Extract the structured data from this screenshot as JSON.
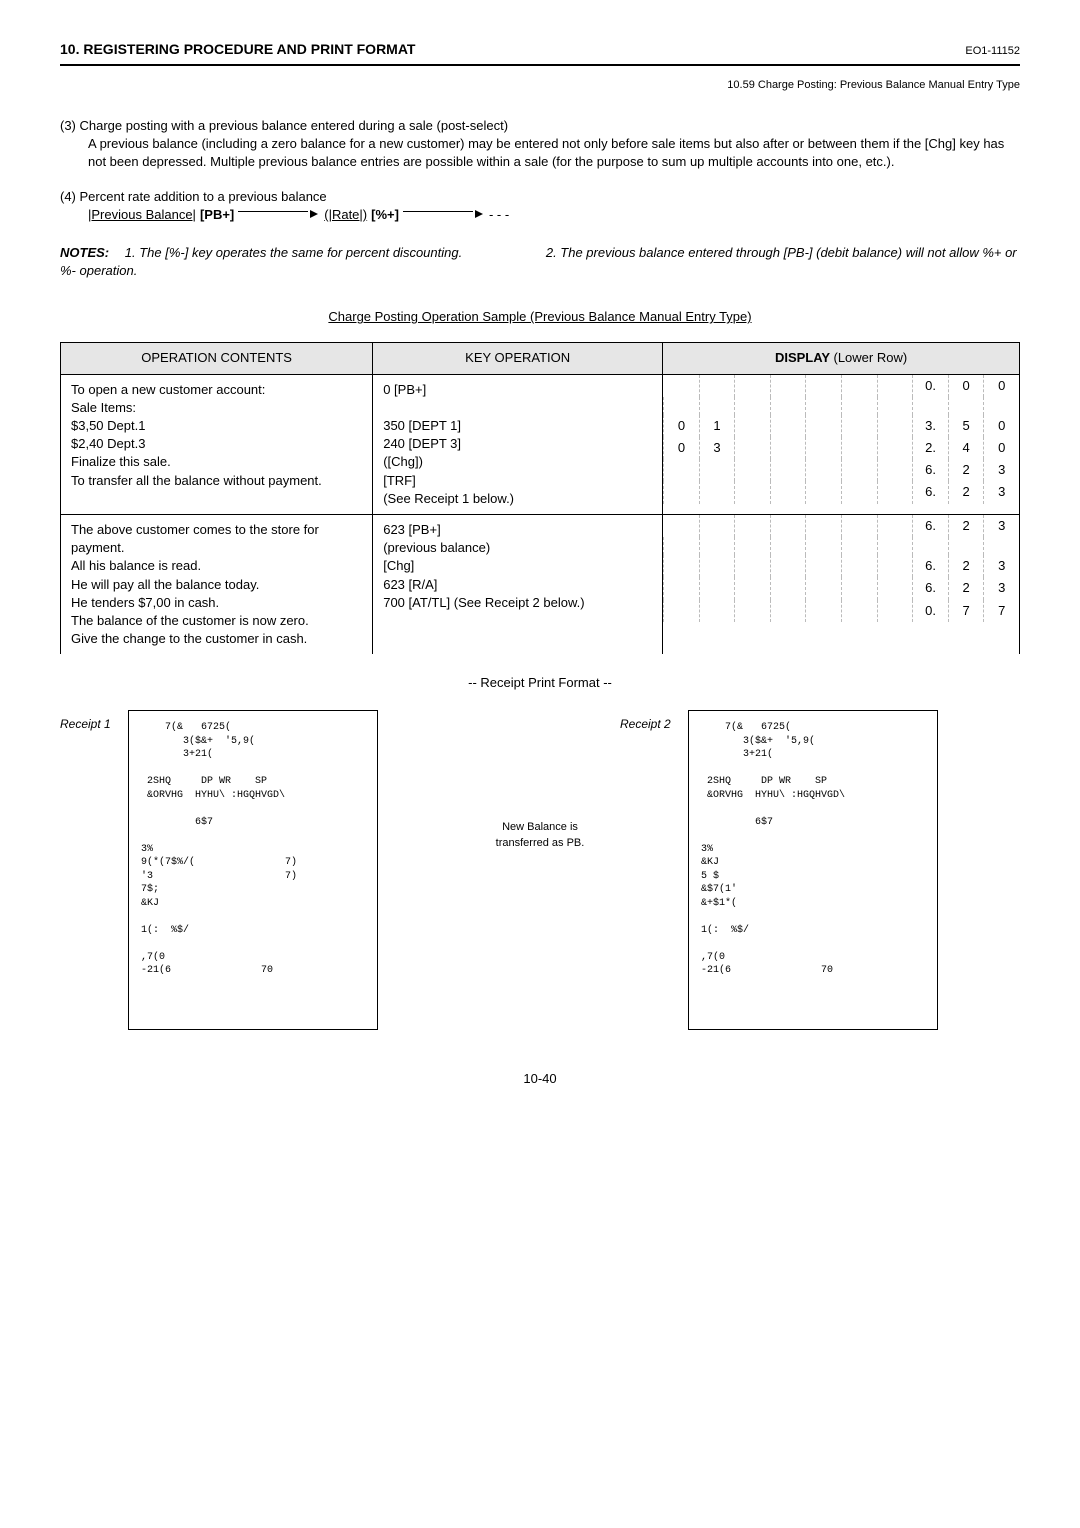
{
  "header": {
    "title": "10. REGISTERING PROCEDURE AND PRINT FORMAT",
    "code": "EO1-11152",
    "subheader": "10.59 Charge Posting: Previous Balance Manual Entry Type"
  },
  "para3_lead": "(3) Charge posting with a previous balance entered during a sale (post-select)",
  "para3_body": "A previous balance (including a zero balance for a new customer) may be entered not only before sale items but also after or between them if the [Chg] key has not been depressed.  Multiple previous balance entries are possible within a sale (for the purpose to sum up multiple accounts into one, etc.).",
  "para4_lead": "(4) Percent rate addition to a previous balance",
  "flow": {
    "a": "|Previous Balance|",
    "b": "[PB+]",
    "c": "(|Rate|)",
    "d": "[%+]",
    "e": "- - -"
  },
  "notes": {
    "label": "NOTES:",
    "n1": "1.  The [%-] key operates the same for percent discounting.",
    "n2": "2.  The previous balance entered through [PB-] (debit balance) will not allow %+ or %- operation."
  },
  "section_title": "Charge Posting Operation Sample (Previous Balance Manual Entry Type)",
  "table": {
    "h1": "OPERATION CONTENTS",
    "h2": "KEY OPERATION",
    "h3_a": "DISPLAY ",
    "h3_b": "(Lower Row)",
    "rows1": {
      "op": "To open a new customer account:\nSale Items:\n            $3,50 Dept.1\n            $2,40 Dept.3\nFinalize this sale.\nTo transfer all the balance without payment.",
      "key": "0 [PB+]\n\n350 [DEPT 1]\n240 [DEPT 3]\n([Chg])\n[TRF]\n(See Receipt 1 below.)"
    },
    "rows2": {
      "op": "The above customer comes to the store for payment.\nAll his balance is read.\nHe will pay all the balance today.\nHe tenders $7,00 in cash.\nThe balance of the customer is now zero.\nGive the change to the customer in cash.",
      "key": "623 [PB+]\n(previous balance)\n[Chg]\n623 [R/A]\n700 [AT/TL] (See Receipt 2 below.)"
    },
    "display1": [
      [
        "",
        "",
        "",
        "",
        "",
        "",
        "",
        "0.",
        "0",
        "0"
      ],
      [
        "",
        "",
        "",
        "",
        "",
        "",
        "",
        "",
        "",
        ""
      ],
      [
        "0",
        "1",
        "",
        "",
        "",
        "",
        "",
        "3.",
        "5",
        "0"
      ],
      [
        "0",
        "3",
        "",
        "",
        "",
        "",
        "",
        "2.",
        "4",
        "0"
      ],
      [
        "",
        "",
        "",
        "",
        "",
        "",
        "",
        "6.",
        "2",
        "3"
      ],
      [
        "",
        "",
        "",
        "",
        "",
        "",
        "",
        "6.",
        "2",
        "3"
      ]
    ],
    "display2": [
      [
        "",
        "",
        "",
        "",
        "",
        "",
        "",
        "6.",
        "2",
        "3"
      ],
      [
        "",
        "",
        "",
        "",
        "",
        "",
        "",
        "",
        "",
        ""
      ],
      [
        "",
        "",
        "",
        "",
        "",
        "",
        "",
        "6.",
        "2",
        "3"
      ],
      [
        "",
        "",
        "",
        "",
        "",
        "",
        "",
        "6.",
        "2",
        "3"
      ],
      [
        "",
        "",
        "",
        "",
        "",
        "",
        "",
        "0.",
        "7",
        "7"
      ]
    ]
  },
  "receipt_section_title": "-- Receipt Print Format --",
  "receipts": {
    "label1": "Receipt 1",
    "label2": "Receipt 2",
    "annot": "New Balance is transferred as PB.",
    "r1": "    7(&   6725(\n       3($&+  '5,9(\n       3+21(\n\n 2SHQ     DP WR    SP\n &ORVHG  HYHU\\ :HGQHVGD\\\n\n         6$7\n\n3%\n9(*(7$%/(               7)\n'3                      7)\n7$;\n&KJ\n\n1(:  %$/\n\n,7(0\n-21(6               70",
    "r2": "    7(&   6725(\n       3($&+  '5,9(\n       3+21(\n\n 2SHQ     DP WR    SP\n &ORVHG  HYHU\\ :HGQHVGD\\\n\n         6$7\n\n3%\n&KJ\n5 $\n&$7(1'\n&+$1*(\n\n1(:  %$/\n\n,7(0\n-21(6               70"
  },
  "page_num": "10-40"
}
